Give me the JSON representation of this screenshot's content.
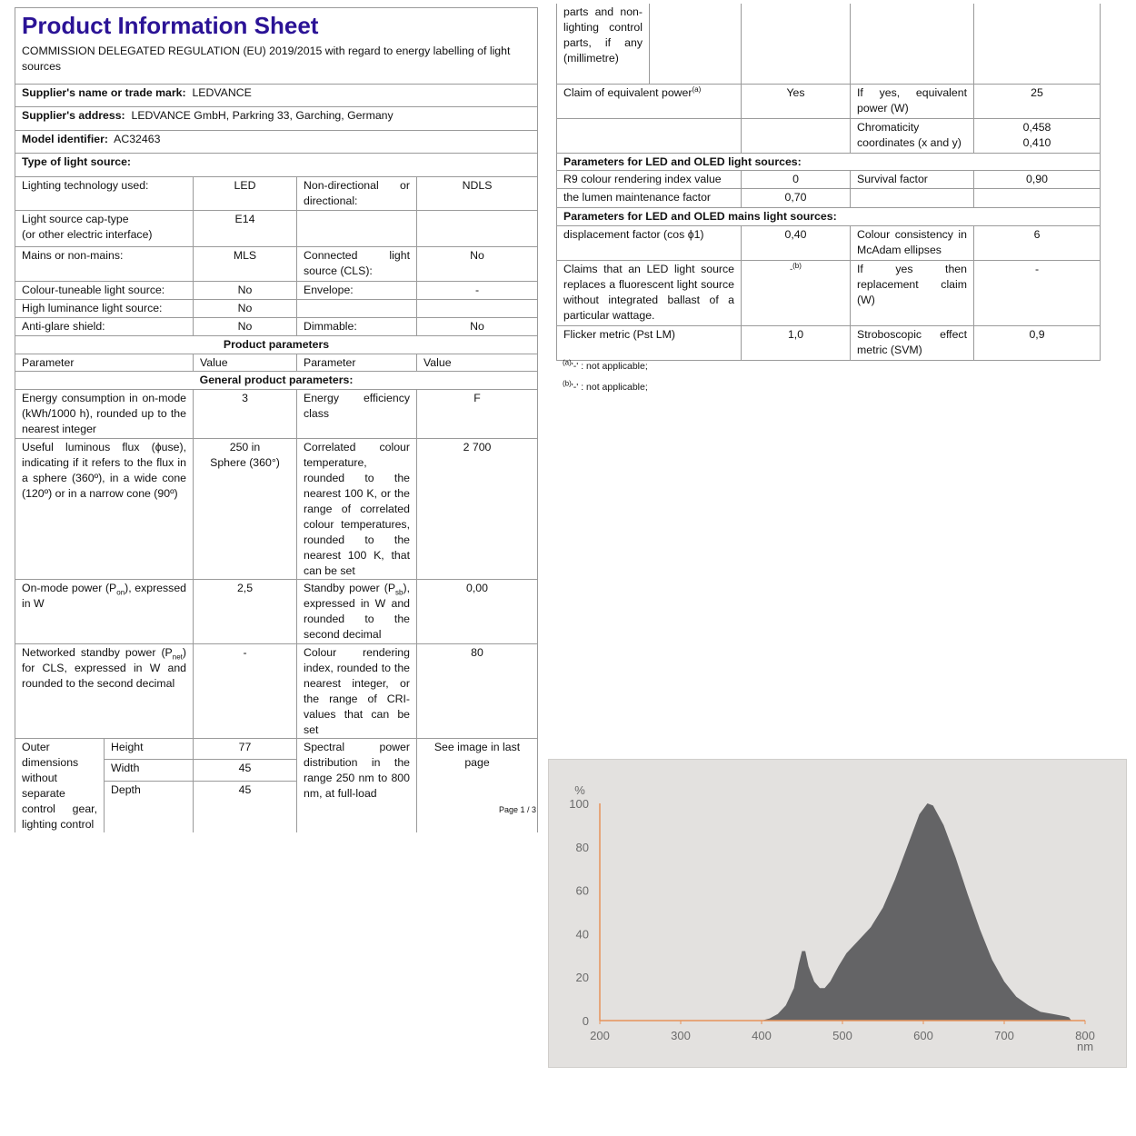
{
  "header": {
    "title": "Product Information Sheet",
    "regulation": "COMMISSION DELEGATED REGULATION (EU) 2019/2015 with regard to energy labelling of light sources"
  },
  "supplier": {
    "name_label": "Supplier's name or trade mark:",
    "name": "LEDVANCE",
    "address_label": "Supplier's address:",
    "address": "LEDVANCE GmbH, Parkring 33, Garching, Germany",
    "model_label": "Model identifier:",
    "model": "AC32463"
  },
  "type": {
    "heading": "Type of light source:",
    "rows": [
      {
        "p1": "Lighting technology used:",
        "v1": "LED",
        "p2": "Non-directional or directional:",
        "v2": "NDLS"
      },
      {
        "p1": "Light source cap-type",
        "p1b": "(or other electric interface)",
        "v1": "E14",
        "p2": "",
        "v2": ""
      },
      {
        "p1": "Mains or non-mains:",
        "v1": "MLS",
        "p2": "Connected light source (CLS):",
        "v2": "No"
      },
      {
        "p1": "Colour-tuneable light source:",
        "v1": "No",
        "p2": "Envelope:",
        "v2": "-"
      },
      {
        "p1": "High luminance light source:",
        "v1": "No",
        "p2": "",
        "v2": ""
      },
      {
        "p1": "Anti-glare shield:",
        "v1": "No",
        "p2": "Dimmable:",
        "v2": "No"
      }
    ]
  },
  "product": {
    "heading": "Product parameters",
    "col_param": "Parameter",
    "col_value": "Value",
    "general_heading": "General product parameters:",
    "energy": {
      "p1": "Energy consumption in on-mode (kWh/1000 h), rounded up to the nearest integer",
      "v1": "3",
      "p2": "Energy efficiency class",
      "v2": "F"
    },
    "flux": {
      "p1": "Useful luminous flux (ϕuse), indicating if it refers to the flux in a sphere (360º), in a wide cone (120º) or in a narrow cone (90º)",
      "v1a": "250 in",
      "v1b": "Sphere (360°)",
      "p2": "Correlated colour temperature, rounded to the nearest 100 K, or the range of correlated colour temperatures, rounded to the nearest 100 K, that can be set",
      "v2": "2 700"
    },
    "onmode": {
      "p1_pre": "On-mode power (P",
      "p1_sub": "on",
      "p1_post": "), expressed in W",
      "v1": "2,5",
      "p2_pre": "Standby power (P",
      "p2_sub": "sb",
      "p2_post": "), expressed in W and rounded to the second decimal",
      "v2": "0,00"
    },
    "networked": {
      "p1_pre": "Networked standby power (P",
      "p1_sub": "net",
      "p1_post": ") for CLS, expressed in W and rounded to the second decimal",
      "v1": "-",
      "p2": "Colour rendering index, rounded to the nearest integer, or the range of CRI-values that can be set",
      "v2": "80"
    },
    "dimensions": {
      "label": "Outer dimensions without separate control gear, lighting control",
      "height_label": "Height",
      "height": "77",
      "width_label": "Width",
      "width": "45",
      "depth_label": "Depth",
      "depth": "45",
      "p2": "Spectral power distribution in the range 250 nm to 800 nm, at full-load",
      "v2": "See image in last page"
    }
  },
  "page": "Page 1 / 3",
  "right": {
    "continuation": "parts and non-lighting control parts, if any (millimetre)",
    "claim": {
      "p1": "Claim of equivalent power",
      "p1_sup": "(a)",
      "v1": "Yes",
      "p2": "If yes, equivalent power (W)",
      "v2": "25"
    },
    "chroma": {
      "p2": "Chromaticity coordinates (x and y)",
      "x": "0,458",
      "y": "0,410"
    },
    "led_heading": "Parameters for LED and OLED light sources:",
    "r9": {
      "p1": "R9 colour rendering index value",
      "v1": "0",
      "p2": "Survival factor",
      "v2": "0,90"
    },
    "lumen": {
      "p1": "the lumen maintenance factor",
      "v1": "0,70"
    },
    "mains_heading": "Parameters for LED and OLED mains light sources:",
    "displacement": {
      "p1": "displacement factor (cos ϕ1)",
      "v1": "0,40",
      "p2": "Colour consistency in McAdam ellipses",
      "v2": "6"
    },
    "fluorescent": {
      "p1": "Claims that an LED light source replaces a fluorescent light source without integrated ballast of a particular wattage.",
      "v1": "-",
      "v1_sup": "(b)",
      "p2": "If yes then replacement claim (W)",
      "v2": "-"
    },
    "flicker": {
      "p1": "Flicker metric (Pst LM)",
      "v1": "1,0",
      "p2": "Stroboscopic effect metric (SVM)",
      "v2": "0,9"
    },
    "footnote_a_mark": "(a)",
    "footnote_a": "'-' : not applicable;",
    "footnote_b_mark": "(b)",
    "footnote_b": "'-' : not applicable;"
  },
  "chart_data": {
    "type": "area",
    "xlabel": "nm",
    "ylabel": "%",
    "xlim": [
      200,
      800
    ],
    "ylim": [
      0,
      100
    ],
    "xticks": [
      200,
      300,
      400,
      500,
      600,
      700,
      800
    ],
    "yticks": [
      0,
      20,
      40,
      60,
      80,
      100
    ],
    "grid": false,
    "colors": {
      "fill": "#646466",
      "axis": "#e8935a",
      "background": "#e3e1df"
    },
    "x": [
      400,
      410,
      420,
      430,
      440,
      446,
      450,
      454,
      458,
      465,
      472,
      478,
      485,
      495,
      505,
      520,
      535,
      550,
      565,
      580,
      595,
      605,
      612,
      625,
      640,
      655,
      670,
      685,
      700,
      715,
      730,
      745,
      760,
      775,
      780,
      783
    ],
    "y": [
      0,
      1,
      3,
      7,
      15,
      26,
      32,
      32,
      25,
      18,
      15,
      15,
      18,
      25,
      31,
      37,
      43,
      52,
      65,
      80,
      95,
      100,
      99,
      90,
      75,
      58,
      42,
      28,
      18,
      11,
      7,
      4,
      3,
      2,
      1.5,
      0
    ]
  }
}
